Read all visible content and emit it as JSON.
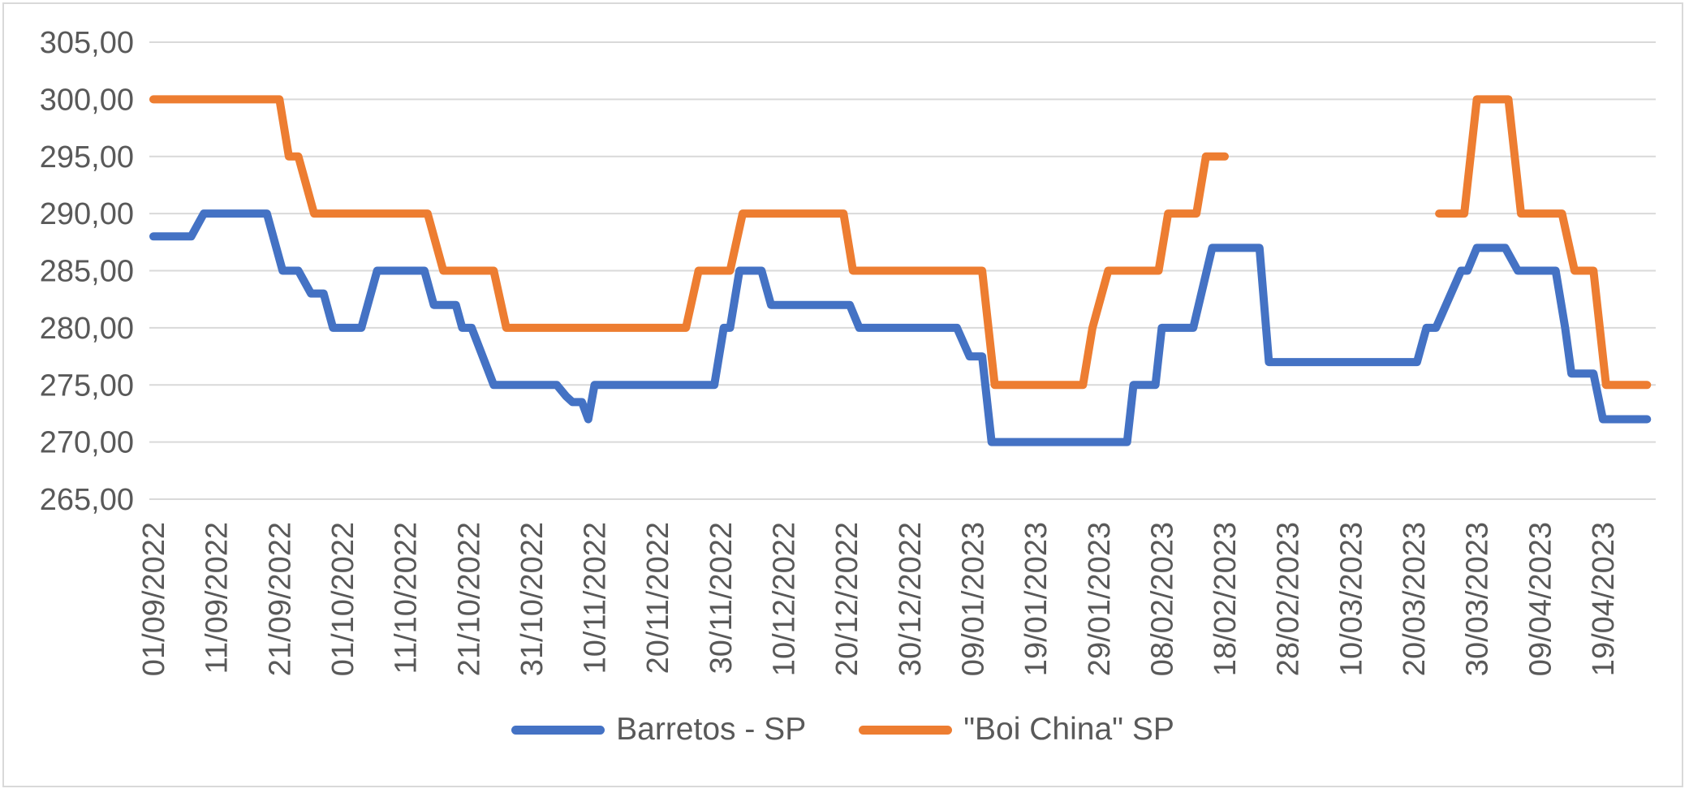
{
  "chart_data": {
    "type": "line",
    "title": "",
    "grid": true,
    "legend_position": "bottom",
    "y_axis": {
      "min": 265,
      "max": 305,
      "step": 5,
      "decimal_style": "comma",
      "tick_labels": [
        "305,00",
        "300,00",
        "295,00",
        "290,00",
        "285,00",
        "280,00",
        "275,00",
        "270,00",
        "265,00"
      ]
    },
    "x_axis": {
      "tick_interval_days": 10,
      "total_days": 237,
      "first_date": "01/09/2022",
      "last_date_shown": "19/04/2023",
      "tick_labels": [
        "01/09/2022",
        "11/09/2022",
        "21/09/2022",
        "01/10/2022",
        "11/10/2022",
        "21/10/2022",
        "31/10/2022",
        "10/11/2022",
        "20/11/2022",
        "30/11/2022",
        "10/12/2022",
        "20/12/2022",
        "30/12/2022",
        "09/01/2023",
        "19/01/2023",
        "29/01/2023",
        "08/02/2023",
        "18/02/2023",
        "28/02/2023",
        "10/03/2023",
        "20/03/2023",
        "30/03/2023",
        "09/04/2023",
        "19/04/2023"
      ]
    },
    "series": [
      {
        "name": "Barretos - SP",
        "color": "#4472C4",
        "segments": [
          [
            [
              0,
              288
            ],
            [
              6,
              288
            ],
            [
              8,
              290
            ],
            [
              18,
              290
            ],
            [
              20.5,
              285
            ],
            [
              23,
              285
            ],
            [
              25,
              283
            ],
            [
              27,
              283
            ],
            [
              28.5,
              280
            ],
            [
              33,
              280
            ],
            [
              35.5,
              285
            ],
            [
              43,
              285
            ],
            [
              44.5,
              282
            ],
            [
              48,
              282
            ],
            [
              49,
              280
            ],
            [
              50.5,
              280
            ],
            [
              54,
              275
            ],
            [
              64,
              275
            ],
            [
              65.5,
              274
            ],
            [
              66.5,
              273.5
            ],
            [
              68,
              273.5
            ],
            [
              69,
              272
            ],
            [
              70,
              275
            ],
            [
              89,
              275
            ],
            [
              90.5,
              280
            ],
            [
              91.5,
              280
            ],
            [
              93,
              285
            ],
            [
              96.5,
              285
            ],
            [
              98,
              282
            ],
            [
              110.5,
              282
            ],
            [
              112,
              280
            ],
            [
              127.5,
              280
            ],
            [
              129.5,
              277.5
            ],
            [
              131.5,
              277.5
            ],
            [
              133,
              270
            ],
            [
              154.5,
              270
            ],
            [
              155.5,
              275
            ],
            [
              159,
              275
            ],
            [
              160,
              280
            ],
            [
              165,
              280
            ],
            [
              168,
              287
            ],
            [
              175.5,
              287
            ],
            [
              177,
              277
            ],
            [
              200.5,
              277
            ],
            [
              202,
              280
            ],
            [
              203.5,
              280
            ],
            [
              207.5,
              285
            ],
            [
              208.5,
              285
            ],
            [
              210,
              287
            ],
            [
              214.5,
              287
            ],
            [
              216.5,
              285
            ],
            [
              222.5,
              285
            ],
            [
              224,
              280
            ],
            [
              225,
              276
            ],
            [
              228.5,
              276
            ],
            [
              230,
              272
            ],
            [
              237,
              272
            ]
          ]
        ]
      },
      {
        "name": "\"Boi China\" SP",
        "color": "#ED7D31",
        "segments": [
          [
            [
              0,
              300
            ],
            [
              20,
              300
            ],
            [
              21.5,
              295
            ],
            [
              23,
              295
            ],
            [
              25.5,
              290
            ],
            [
              43.5,
              290
            ],
            [
              46,
              285
            ],
            [
              54,
              285
            ],
            [
              56,
              280
            ],
            [
              84.5,
              280
            ],
            [
              86.5,
              285
            ],
            [
              91.5,
              285
            ],
            [
              93.5,
              290
            ],
            [
              109.5,
              290
            ],
            [
              111,
              285
            ],
            [
              131.5,
              285
            ],
            [
              133.5,
              275
            ],
            [
              147.5,
              275
            ],
            [
              149,
              280
            ],
            [
              151.5,
              285
            ],
            [
              159.5,
              285
            ],
            [
              161,
              290
            ],
            [
              165.5,
              290
            ],
            [
              167,
              295
            ],
            [
              170,
              295
            ]
          ],
          [
            [
              204,
              290
            ],
            [
              208,
              290
            ],
            [
              210,
              300
            ],
            [
              215,
              300
            ],
            [
              217,
              290
            ],
            [
              223.5,
              290
            ],
            [
              225.5,
              285
            ],
            [
              228.5,
              285
            ],
            [
              230.5,
              275
            ],
            [
              237,
              275
            ]
          ]
        ]
      }
    ]
  },
  "styles": {
    "grid_color": "#D9D9D9",
    "axis_label_color": "#595959",
    "frame_border_color": "#D9D9D9",
    "background": "#FFFFFF"
  }
}
